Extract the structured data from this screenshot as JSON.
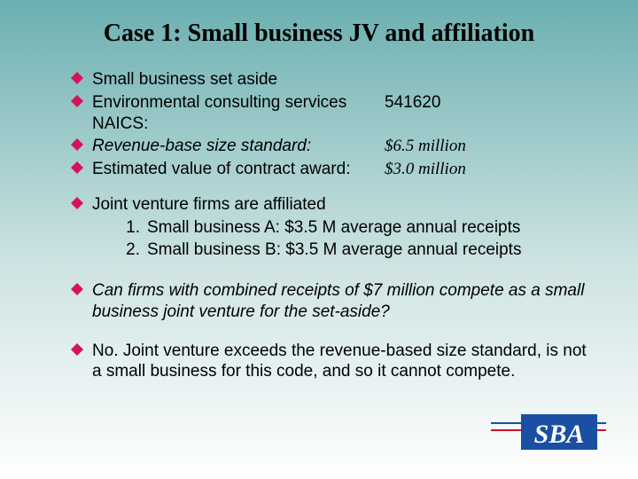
{
  "background": {
    "gradient_top": "#6bafb0",
    "gradient_mid": "#cde3e2",
    "gradient_bottom": "#ffffff"
  },
  "title": "Case 1:  Small business JV and affiliation",
  "title_fontsize": 28,
  "body_fontsize": 19,
  "bullet_color": "#d4145a",
  "bullet_size": 14,
  "group1": [
    {
      "text": "Small business set aside"
    },
    {
      "label": "Environmental consulting services NAICS:",
      "value": "541620"
    },
    {
      "label": "Revenue-base size standard:",
      "value": "$6.5 million",
      "label_italic": true,
      "value_serif_italic": true
    },
    {
      "label": "Estimated value of contract award:",
      "value": "$3.0 million",
      "value_serif_italic": true
    }
  ],
  "jv_intro": "Joint venture firms are affiliated",
  "jv_items": [
    {
      "num": "1.",
      "text": "Small business  A:  $3.5 M average annual receipts"
    },
    {
      "num": "2.",
      "text": "Small business  B:  $3.5 M average annual receipts"
    }
  ],
  "question": "Can firms with combined receipts of  $7 million compete as a small business joint venture for the set-aside?",
  "answer": "No.  Joint venture exceeds the revenue-based size standard, is not a small business for this code, and so it cannot compete.",
  "logo": {
    "text": "SBA",
    "bar_color": "#1a4fa3",
    "text_color": "#ffffff",
    "line_color": "#c8102e"
  }
}
